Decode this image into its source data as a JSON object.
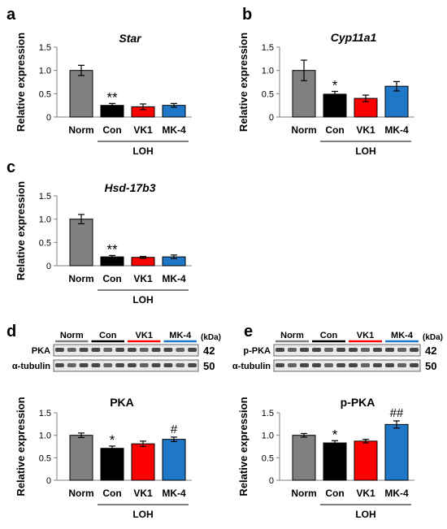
{
  "colors": {
    "Norm": "#808080",
    "Con": "#000000",
    "VK1": "#ff0000",
    "MK-4": "#1f77c8",
    "axis": "#7f7f7f",
    "text": "#000000"
  },
  "blots": {
    "kda_label": "(kDa)",
    "group_labels": [
      "Norm",
      "Con",
      "VK1",
      "MK-4"
    ],
    "panels": [
      {
        "panel_label": "d",
        "rows": [
          {
            "protein": "PKA",
            "kda": "42"
          },
          {
            "protein": "α-tubulin",
            "kda": "50"
          }
        ]
      },
      {
        "panel_label": "e",
        "rows": [
          {
            "protein": "p-PKA",
            "kda": "42"
          },
          {
            "protein": "α-tubulin",
            "kda": "50"
          }
        ]
      }
    ]
  },
  "chart_data": [
    {
      "panel_label": "a",
      "type": "bar",
      "title": "Star",
      "ylabel": "Relative expression",
      "ylim": [
        0,
        1.5
      ],
      "yticks": [
        "0",
        "0.5",
        "1.0",
        "1.5"
      ],
      "categories": [
        "Norm",
        "Con",
        "VK1",
        "MK-4"
      ],
      "values": [
        1.0,
        0.25,
        0.22,
        0.25
      ],
      "errors": [
        0.11,
        0.04,
        0.06,
        0.04
      ],
      "annotations": [
        "",
        "**",
        "",
        ""
      ],
      "group_label": "LOH"
    },
    {
      "panel_label": "b",
      "type": "bar",
      "title": "Cyp11a1",
      "ylabel": "Relative expression",
      "ylim": [
        0,
        1.5
      ],
      "yticks": [
        "0",
        "0.5",
        "1.0",
        "1.5"
      ],
      "categories": [
        "Norm",
        "Con",
        "VK1",
        "MK-4"
      ],
      "values": [
        1.0,
        0.49,
        0.4,
        0.66
      ],
      "errors": [
        0.22,
        0.06,
        0.07,
        0.1
      ],
      "annotations": [
        "",
        "*",
        "",
        ""
      ],
      "group_label": "LOH"
    },
    {
      "panel_label": "c",
      "type": "bar",
      "title": "Hsd-17b3",
      "ylabel": "Relative expression",
      "ylim": [
        0,
        1.5
      ],
      "yticks": [
        "0",
        "0.5",
        "1.0",
        "1.5"
      ],
      "categories": [
        "Norm",
        "Con",
        "VK1",
        "MK-4"
      ],
      "values": [
        1.0,
        0.19,
        0.18,
        0.19
      ],
      "errors": [
        0.1,
        0.03,
        0.02,
        0.04
      ],
      "annotations": [
        "",
        "**",
        "",
        ""
      ],
      "group_label": "LOH"
    },
    {
      "panel_label": "",
      "type": "bar",
      "title": "PKA",
      "ylabel": "Relative expression",
      "ylim": [
        0,
        1.5
      ],
      "yticks": [
        "0",
        "0.5",
        "1.0",
        "1.5"
      ],
      "categories": [
        "Norm",
        "Con",
        "VK1",
        "MK-4"
      ],
      "values": [
        1.0,
        0.71,
        0.81,
        0.91
      ],
      "errors": [
        0.05,
        0.05,
        0.06,
        0.05
      ],
      "annotations": [
        "",
        "*",
        "",
        "#"
      ],
      "group_label": "LOH"
    },
    {
      "panel_label": "",
      "type": "bar",
      "title": "p-PKA",
      "ylabel": "Relative expression",
      "ylim": [
        0,
        1.5
      ],
      "yticks": [
        "0",
        "0.5",
        "1.0",
        "1.5"
      ],
      "categories": [
        "Norm",
        "Con",
        "VK1",
        "MK-4"
      ],
      "values": [
        1.0,
        0.83,
        0.87,
        1.24
      ],
      "errors": [
        0.04,
        0.05,
        0.04,
        0.08
      ],
      "annotations": [
        "",
        "*",
        "",
        "##"
      ],
      "group_label": "LOH"
    }
  ]
}
